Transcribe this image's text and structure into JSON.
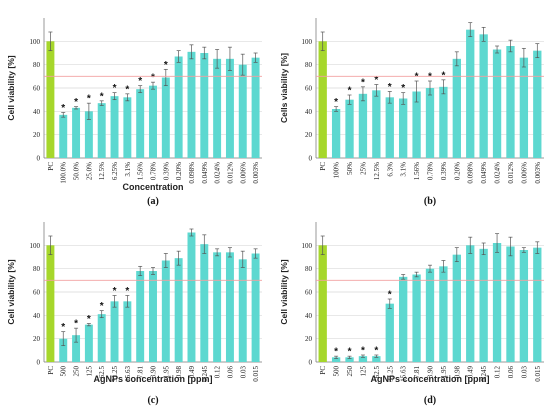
{
  "chart_data": [
    {
      "panel_label": "(a)",
      "type": "bar",
      "ylabel": "Cell viability [%]",
      "xlabel": "Concentration",
      "ylim": [
        0,
        120
      ],
      "yticks": [
        0,
        20,
        40,
        60,
        80,
        100
      ],
      "threshold": 70,
      "colors": {
        "control": "#a6d72b",
        "bar": "#5dd8d0"
      },
      "categories": [
        "PC",
        "100.0%",
        "50.0%",
        "25.0%",
        "12.5%",
        "6.25%",
        "3.1%",
        "1.56%",
        "0.78%",
        "0.39%",
        "0.20%",
        "0.098%",
        "0.049%",
        "0.024%",
        "0.012%",
        "0.006%",
        "0.003%"
      ],
      "values": [
        100,
        37,
        43,
        40,
        47,
        53,
        52,
        59,
        62,
        69,
        87,
        91,
        90,
        85,
        85,
        80,
        86
      ],
      "errors": [
        8,
        2,
        1,
        7,
        2,
        3,
        3,
        3,
        3,
        7,
        5,
        6,
        5,
        8,
        10,
        9,
        4
      ],
      "significant": [
        false,
        true,
        true,
        true,
        true,
        true,
        true,
        true,
        true,
        true,
        false,
        false,
        false,
        false,
        false,
        false,
        false
      ]
    },
    {
      "panel_label": "(b)",
      "type": "bar",
      "ylabel": "Cells viability [%]",
      "xlabel": "",
      "ylim": [
        0,
        120
      ],
      "yticks": [
        0,
        20,
        40,
        60,
        80,
        100
      ],
      "threshold": 70,
      "colors": {
        "control": "#a6d72b",
        "bar": "#5dd8d0"
      },
      "categories": [
        "PC",
        "100%",
        "50%",
        "25%",
        "12.5%",
        "6.3%",
        "3.1%",
        "1.56%",
        "0.78%",
        "0.39%",
        "0.20%",
        "0.098%",
        "0.049%",
        "0.024%",
        "0.012%",
        "0.006%",
        "0.003%"
      ],
      "values": [
        100,
        42,
        50,
        55,
        58,
        52,
        51,
        57,
        60,
        61,
        85,
        110,
        106,
        93,
        96,
        86,
        92
      ],
      "errors": [
        8,
        2,
        4,
        6,
        5,
        5,
        5,
        9,
        6,
        6,
        6,
        6,
        6,
        3,
        5,
        8,
        6
      ],
      "significant": [
        false,
        true,
        true,
        true,
        true,
        true,
        true,
        true,
        true,
        true,
        false,
        false,
        false,
        false,
        false,
        false,
        false
      ]
    },
    {
      "panel_label": "(c)",
      "type": "bar",
      "ylabel": "Cell viability [%]",
      "xlabel": "AgNPs concentration [ppm]",
      "ylim": [
        0,
        120
      ],
      "yticks": [
        0,
        20,
        40,
        60,
        80,
        100
      ],
      "threshold": 70,
      "colors": {
        "control": "#a6d72b",
        "bar": "#5dd8d0"
      },
      "categories": [
        "PC",
        "500",
        "250",
        "125",
        "62.5",
        "31.25",
        "15.63",
        "7.81",
        "3.90",
        "1.95",
        "0.98",
        "0.49",
        "0.245",
        "0.12",
        "0.06",
        "0.03",
        "0.015"
      ],
      "values": [
        100,
        20,
        23,
        32,
        41,
        52,
        52,
        78,
        78,
        87,
        89,
        111,
        101,
        94,
        94,
        88,
        93
      ],
      "errors": [
        8,
        6,
        6,
        1,
        3,
        5,
        5,
        4,
        3,
        6,
        6,
        3,
        8,
        3,
        4,
        7,
        4
      ],
      "significant": [
        false,
        true,
        true,
        true,
        true,
        true,
        true,
        false,
        false,
        false,
        false,
        false,
        false,
        false,
        false,
        false,
        false
      ]
    },
    {
      "panel_label": "(d)",
      "type": "bar",
      "ylabel": "Cell viability [%]",
      "xlabel": "AgNPs concentration [ppm]",
      "ylim": [
        0,
        120
      ],
      "yticks": [
        0,
        20,
        40,
        60,
        80,
        100
      ],
      "threshold": 70,
      "colors": {
        "control": "#a6d72b",
        "bar": "#5dd8d0"
      },
      "categories": [
        "PC",
        "500",
        "250",
        "125",
        "62.5",
        "31.25",
        "15.63",
        "7.81",
        "3.90",
        "1.95",
        "0.98",
        "0.49",
        "0.245",
        "0.12",
        "0.06",
        "0.03",
        "0.015"
      ],
      "values": [
        100,
        4,
        4,
        5,
        5,
        50,
        73,
        75,
        80,
        82,
        92,
        100,
        97,
        102,
        99,
        96,
        98
      ],
      "errors": [
        8,
        1,
        1,
        1,
        1,
        4,
        2,
        2,
        3,
        5,
        6,
        7,
        5,
        8,
        8,
        2,
        5
      ],
      "significant": [
        false,
        true,
        true,
        true,
        true,
        true,
        false,
        false,
        false,
        false,
        false,
        false,
        false,
        false,
        false,
        false,
        false
      ]
    }
  ]
}
